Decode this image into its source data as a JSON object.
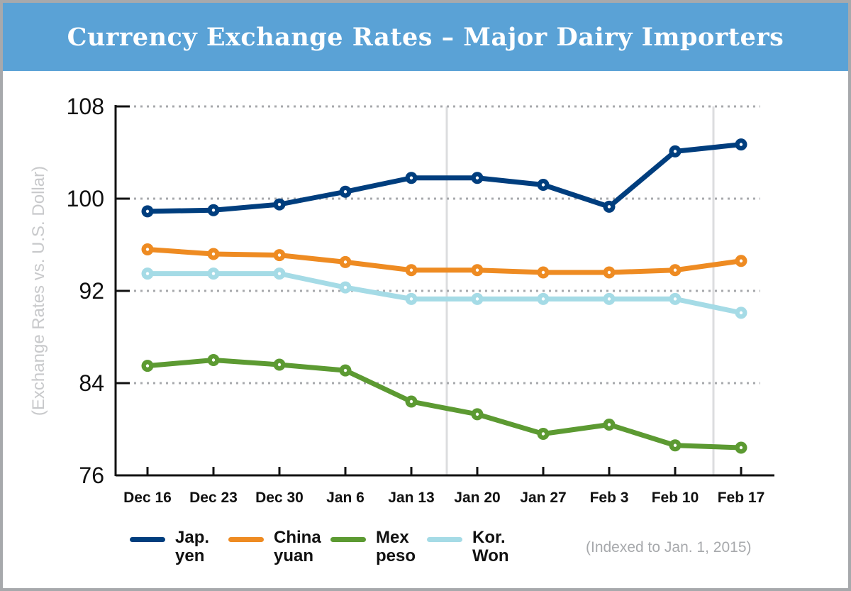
{
  "chart_data": {
    "type": "line",
    "title": "Currency Exchange Rates – Major Dairy Importers",
    "ylabel": "(Exchange Rates vs. U.S. Dollar)",
    "note": "(Indexed to Jan. 1, 2015)",
    "ylim": [
      76,
      108
    ],
    "yticks": [
      "108",
      "100",
      "92",
      "84",
      "76"
    ],
    "categories": [
      "Dec 16",
      "Dec 23",
      "Dec 30",
      "Jan 6",
      "Jan 13",
      "Jan 20",
      "Jan 27",
      "Feb 3",
      "Feb 10",
      "Feb 17"
    ],
    "grid": "horizontal dotted",
    "legend_placement": "bottom",
    "series": [
      {
        "name": "Jap.\nyen",
        "color": "#003e7e",
        "values": [
          98.9,
          99.0,
          99.5,
          100.6,
          101.8,
          101.8,
          101.2,
          99.3,
          104.1,
          104.7
        ]
      },
      {
        "name": "China\nyuan",
        "color": "#ee8b22",
        "values": [
          95.6,
          95.2,
          95.1,
          94.5,
          93.8,
          93.8,
          93.6,
          93.6,
          93.8,
          94.6
        ]
      },
      {
        "name": "Mex\npeso",
        "color": "#5c9a32",
        "values": [
          85.5,
          86.0,
          85.6,
          85.1,
          82.4,
          81.3,
          79.6,
          80.4,
          78.6,
          78.4
        ]
      },
      {
        "name": "Kor.\nWon",
        "color": "#a5dbe6",
        "values": [
          93.5,
          93.5,
          93.5,
          92.3,
          91.3,
          91.3,
          91.3,
          91.3,
          91.3,
          90.1
        ]
      }
    ]
  }
}
